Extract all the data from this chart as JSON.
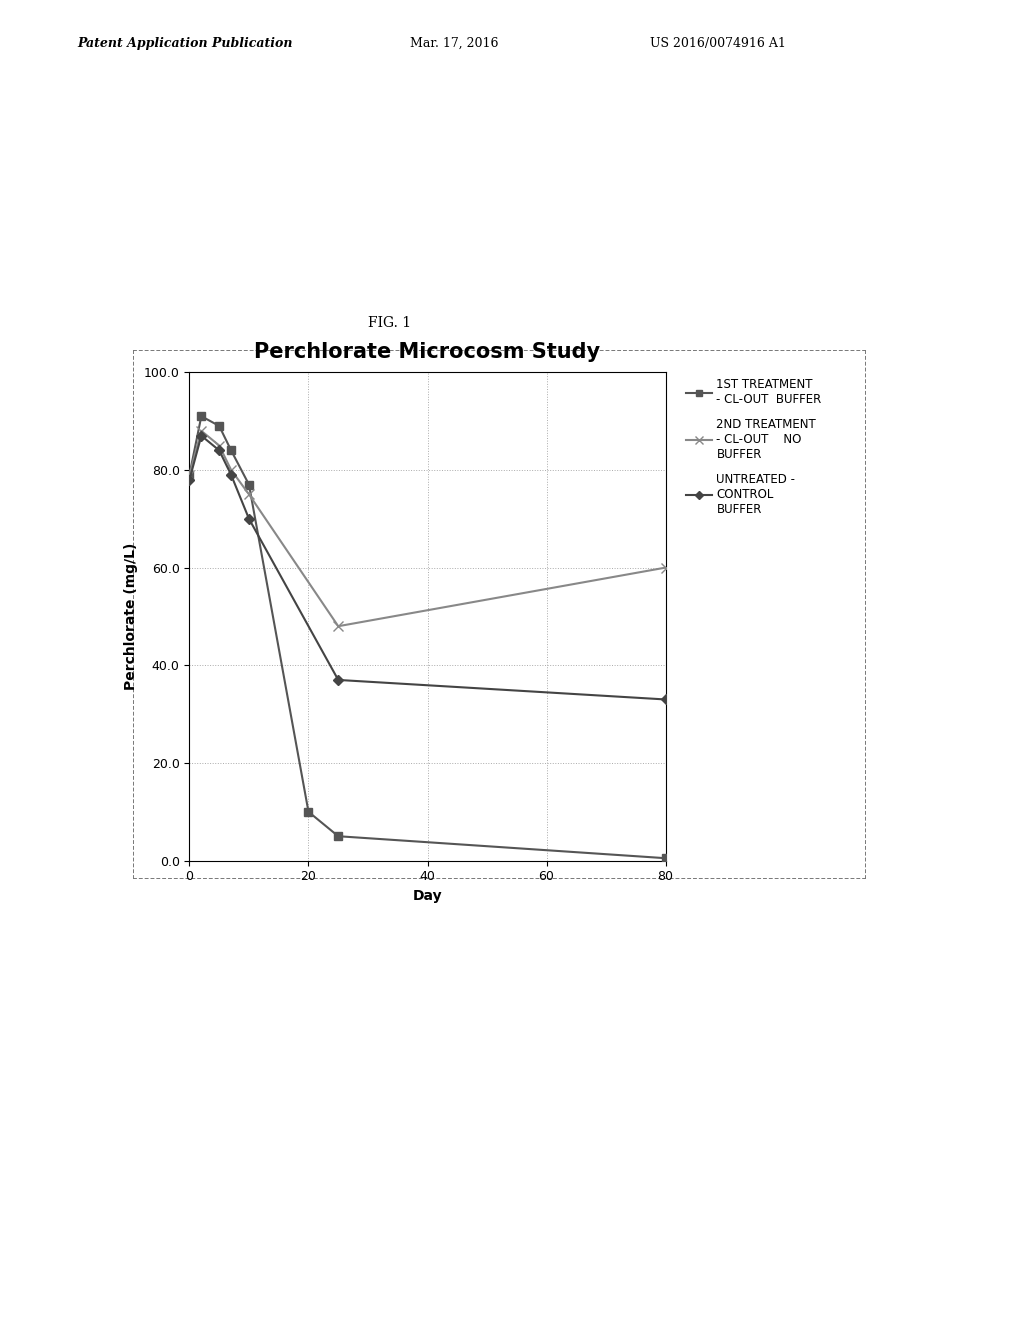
{
  "title": "Perchlorate Microcosm Study",
  "xlabel": "Day",
  "ylabel": "Perchlorate (mg/L)",
  "xlim": [
    0,
    80
  ],
  "ylim": [
    0,
    100
  ],
  "yticks": [
    0.0,
    20.0,
    40.0,
    60.0,
    80.0,
    100.0
  ],
  "xticks": [
    0,
    20,
    40,
    60,
    80
  ],
  "fig_label": "FIG. 1",
  "patent_left": "Patent Application Publication",
  "patent_mid": "Mar. 17, 2016",
  "patent_right": "US 2016/0074916 A1",
  "series": [
    {
      "label": "1ST TREATMENT\n- CL-OUT  BUFFER",
      "color": "#555555",
      "marker": "s",
      "markersize": 6,
      "linewidth": 1.5,
      "x": [
        0,
        2,
        5,
        7,
        10,
        20,
        25,
        80
      ],
      "y": [
        79,
        91,
        89,
        84,
        77,
        10,
        5,
        0.5
      ]
    },
    {
      "label": "2ND TREATMENT\n- CL-OUT    NO\nBUFFER",
      "color": "#888888",
      "marker": "x",
      "markersize": 7,
      "linewidth": 1.5,
      "x": [
        0,
        2,
        5,
        7,
        10,
        25,
        80
      ],
      "y": [
        79,
        88,
        85,
        80,
        75,
        48,
        60
      ]
    },
    {
      "label": "UNTREATED -\nCONTROL\nBUFFER",
      "color": "#444444",
      "marker": "D",
      "markersize": 5,
      "linewidth": 1.5,
      "x": [
        0,
        2,
        5,
        7,
        10,
        25,
        80
      ],
      "y": [
        78,
        87,
        84,
        79,
        70,
        37,
        33
      ]
    }
  ],
  "background_color": "#ffffff",
  "plot_bg_color": "#ffffff",
  "grid_color": "#aaaaaa",
  "title_fontsize": 15,
  "axis_label_fontsize": 10,
  "tick_fontsize": 9,
  "legend_fontsize": 8.5,
  "fig_label_fontsize": 10,
  "header_fontsize": 9
}
